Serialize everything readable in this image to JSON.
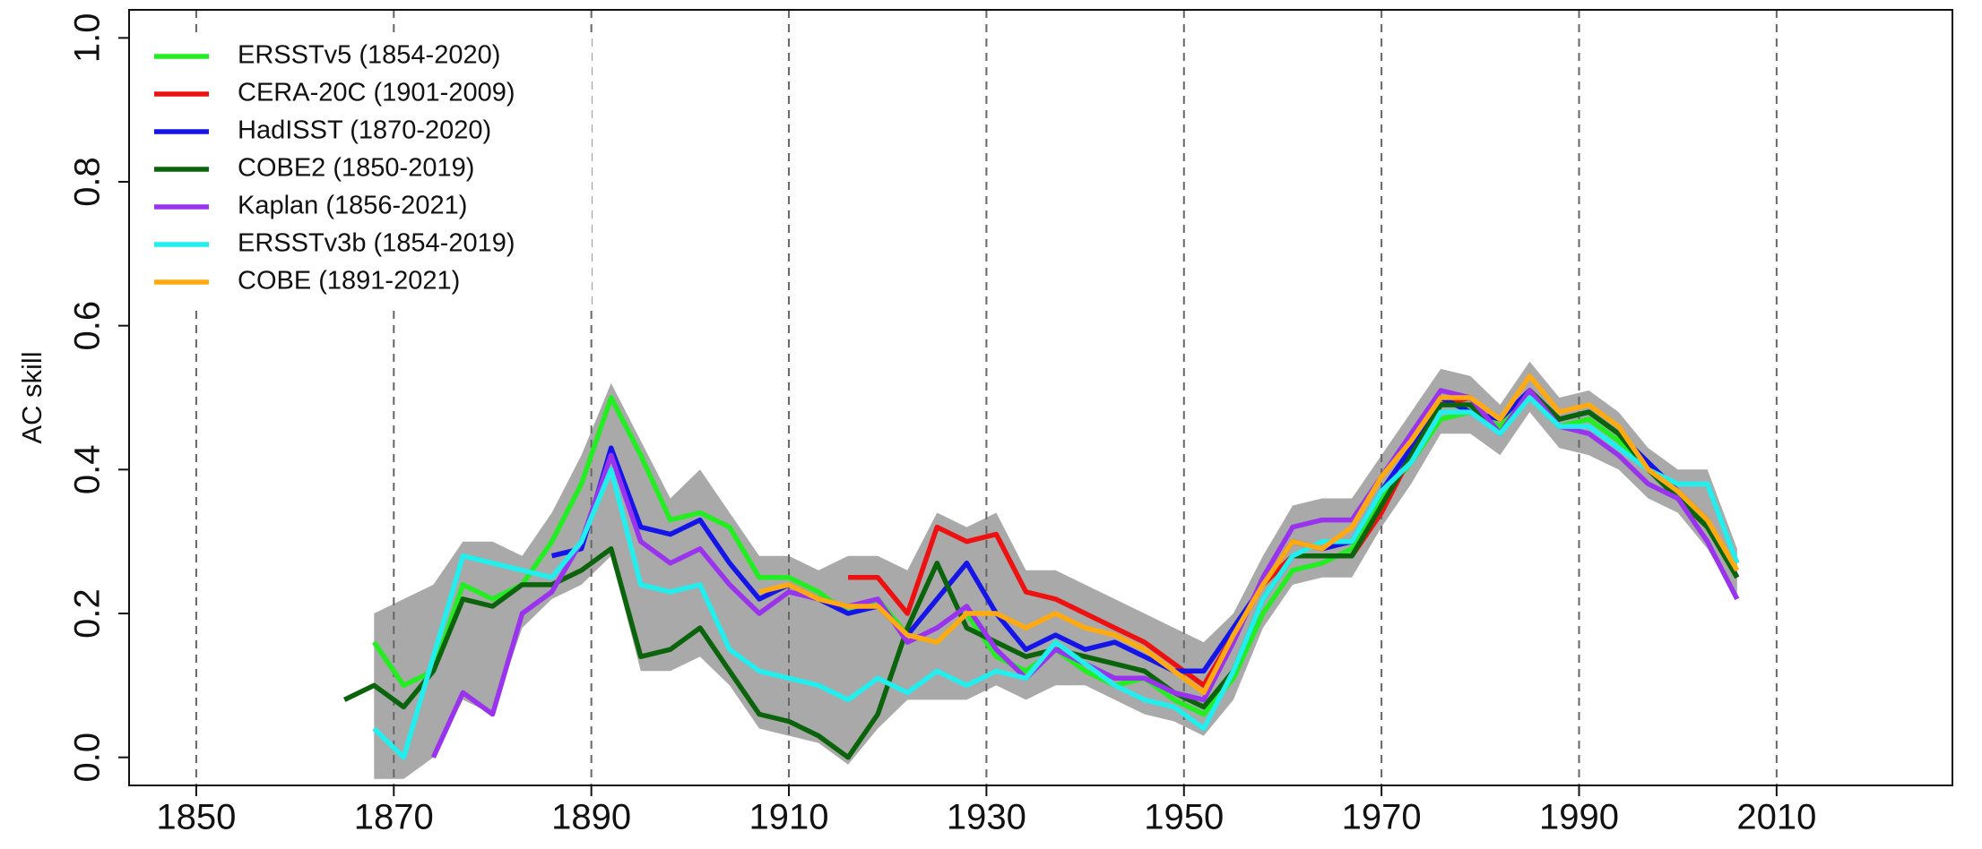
{
  "chart_data": {
    "type": "line",
    "y_label": "AC skill",
    "xlim": [
      1843.2,
      2027.8
    ],
    "ylim": [
      -0.039,
      1.039
    ],
    "xticks": [
      1850,
      1870,
      1890,
      1910,
      1930,
      1950,
      1970,
      1990,
      2010
    ],
    "yticks": [
      {
        "value": 0,
        "label": "0.0"
      },
      0.2,
      0.4,
      0.6,
      0.8,
      {
        "value": 1,
        "label": "1.0"
      }
    ],
    "grid": true,
    "legend": "upper left",
    "x": [
      1865,
      1868,
      1871,
      1874,
      1877,
      1880,
      1883,
      1886,
      1889,
      1892,
      1895,
      1898,
      1901,
      1904,
      1907,
      1910,
      1913,
      1916,
      1919,
      1922,
      1925,
      1928,
      1931,
      1934,
      1937,
      1940,
      1943,
      1946,
      1949,
      1952,
      1955,
      1958,
      1961,
      1964,
      1967,
      1970,
      1973,
      1976,
      1979,
      1982,
      1985,
      1988,
      1991,
      1994,
      1997,
      2000,
      2003,
      2006
    ],
    "band": {
      "color": "#a9a9a9",
      "lower": [
        null,
        -0.03,
        -0.03,
        0.0,
        0.08,
        0.06,
        0.18,
        0.22,
        0.24,
        0.28,
        0.12,
        0.12,
        0.14,
        0.1,
        0.04,
        0.03,
        0.02,
        -0.01,
        0.04,
        0.08,
        0.08,
        0.08,
        0.1,
        0.08,
        0.1,
        0.1,
        0.08,
        0.06,
        0.05,
        0.03,
        0.08,
        0.18,
        0.24,
        0.25,
        0.25,
        0.32,
        0.38,
        0.45,
        0.45,
        0.42,
        0.48,
        0.43,
        0.42,
        0.4,
        0.36,
        0.34,
        0.29,
        0.22
      ],
      "upper": [
        null,
        0.2,
        0.22,
        0.24,
        0.3,
        0.3,
        0.28,
        0.34,
        0.42,
        0.52,
        0.44,
        0.36,
        0.4,
        0.34,
        0.28,
        0.28,
        0.26,
        0.28,
        0.28,
        0.26,
        0.34,
        0.32,
        0.34,
        0.26,
        0.26,
        0.24,
        0.22,
        0.2,
        0.18,
        0.16,
        0.2,
        0.28,
        0.35,
        0.36,
        0.36,
        0.42,
        0.48,
        0.54,
        0.53,
        0.49,
        0.55,
        0.5,
        0.51,
        0.48,
        0.43,
        0.4,
        0.4,
        0.29
      ]
    },
    "series": [
      {
        "name": "ERSSTv5 (1854-2020)",
        "color": "#22ee22",
        "values": [
          null,
          0.16,
          0.1,
          0.12,
          0.24,
          0.22,
          0.24,
          0.3,
          0.38,
          0.5,
          0.42,
          0.33,
          0.34,
          0.32,
          0.25,
          0.25,
          0.23,
          0.2,
          0.22,
          0.17,
          0.16,
          0.2,
          0.14,
          0.12,
          0.15,
          0.12,
          0.1,
          0.11,
          0.08,
          0.06,
          0.11,
          0.2,
          0.26,
          0.27,
          0.29,
          0.36,
          0.41,
          0.47,
          0.48,
          0.46,
          0.5,
          0.46,
          0.47,
          0.44,
          0.4,
          0.37,
          0.32,
          0.25
        ]
      },
      {
        "name": "CERA-20C (1901-2009)",
        "color": "#ee1111",
        "values": [
          null,
          null,
          null,
          null,
          null,
          null,
          null,
          null,
          null,
          null,
          null,
          null,
          null,
          null,
          null,
          null,
          null,
          0.25,
          0.25,
          0.2,
          0.32,
          0.3,
          0.31,
          0.23,
          0.22,
          0.2,
          0.18,
          0.16,
          0.13,
          0.1,
          0.17,
          0.24,
          0.28,
          0.28,
          0.28,
          0.34,
          0.42,
          0.49,
          0.5,
          0.45,
          0.51,
          0.47,
          null,
          null,
          null,
          null,
          null,
          null
        ]
      },
      {
        "name": "HadISST (1870-2020)",
        "color": "#1515e8",
        "values": [
          null,
          null,
          null,
          null,
          null,
          null,
          null,
          0.28,
          0.29,
          0.43,
          0.32,
          0.31,
          0.33,
          0.27,
          0.22,
          0.24,
          0.22,
          0.2,
          0.21,
          0.17,
          0.22,
          0.27,
          0.2,
          0.15,
          0.17,
          0.15,
          0.16,
          0.14,
          0.12,
          0.12,
          0.18,
          0.24,
          0.3,
          0.29,
          0.3,
          0.37,
          0.43,
          0.5,
          0.48,
          0.47,
          0.51,
          0.47,
          0.48,
          0.45,
          0.41,
          0.37,
          0.33,
          0.25
        ]
      },
      {
        "name": "COBE2 (1850-2019)",
        "color": "#0b640b",
        "values": [
          0.08,
          0.1,
          0.07,
          0.12,
          0.22,
          0.21,
          0.24,
          0.24,
          0.26,
          0.29,
          0.14,
          0.15,
          0.18,
          0.12,
          0.06,
          0.05,
          0.03,
          0.0,
          0.06,
          0.18,
          0.27,
          0.18,
          0.16,
          0.14,
          0.15,
          0.14,
          0.13,
          0.12,
          0.09,
          0.07,
          0.12,
          0.22,
          0.28,
          0.28,
          0.28,
          0.35,
          0.42,
          0.49,
          0.49,
          0.45,
          0.51,
          0.47,
          0.48,
          0.45,
          0.4,
          0.36,
          0.32,
          0.25
        ]
      },
      {
        "name": "Kaplan (1856-2021)",
        "color": "#9933ee",
        "values": [
          null,
          null,
          null,
          0.0,
          0.09,
          0.06,
          0.2,
          0.23,
          0.3,
          0.42,
          0.3,
          0.27,
          0.29,
          0.24,
          0.2,
          0.23,
          0.22,
          0.21,
          0.22,
          0.16,
          0.18,
          0.21,
          0.15,
          0.11,
          0.15,
          0.13,
          0.11,
          0.11,
          0.09,
          0.08,
          0.16,
          0.25,
          0.32,
          0.33,
          0.33,
          0.39,
          0.45,
          0.51,
          0.5,
          0.45,
          0.51,
          0.46,
          0.45,
          0.42,
          0.38,
          0.36,
          0.3,
          0.22
        ]
      },
      {
        "name": "ERSSTv3b (1854-2019)",
        "color": "#22eeee",
        "values": [
          null,
          0.04,
          0.0,
          0.14,
          0.28,
          0.27,
          0.26,
          0.25,
          0.3,
          0.4,
          0.24,
          0.23,
          0.24,
          0.15,
          0.12,
          0.11,
          0.1,
          0.08,
          0.11,
          0.09,
          0.12,
          0.1,
          0.12,
          0.11,
          0.16,
          0.13,
          0.1,
          0.08,
          0.07,
          0.04,
          0.12,
          0.22,
          0.28,
          0.3,
          0.3,
          0.37,
          0.41,
          0.48,
          0.48,
          0.45,
          0.5,
          0.46,
          0.46,
          0.43,
          0.4,
          0.38,
          0.38,
          0.27
        ]
      },
      {
        "name": "COBE (1891-2021)",
        "color": "#ffaa11",
        "values": [
          null,
          null,
          null,
          null,
          null,
          null,
          null,
          null,
          null,
          null,
          null,
          null,
          null,
          null,
          0.23,
          0.24,
          0.22,
          0.21,
          0.21,
          0.17,
          0.16,
          0.2,
          0.2,
          0.18,
          0.2,
          0.18,
          0.17,
          0.15,
          0.12,
          0.09,
          0.17,
          0.24,
          0.3,
          0.29,
          0.32,
          0.39,
          0.44,
          0.5,
          0.5,
          0.47,
          0.53,
          0.48,
          0.49,
          0.46,
          0.4,
          0.37,
          0.33,
          0.26
        ]
      }
    ]
  }
}
